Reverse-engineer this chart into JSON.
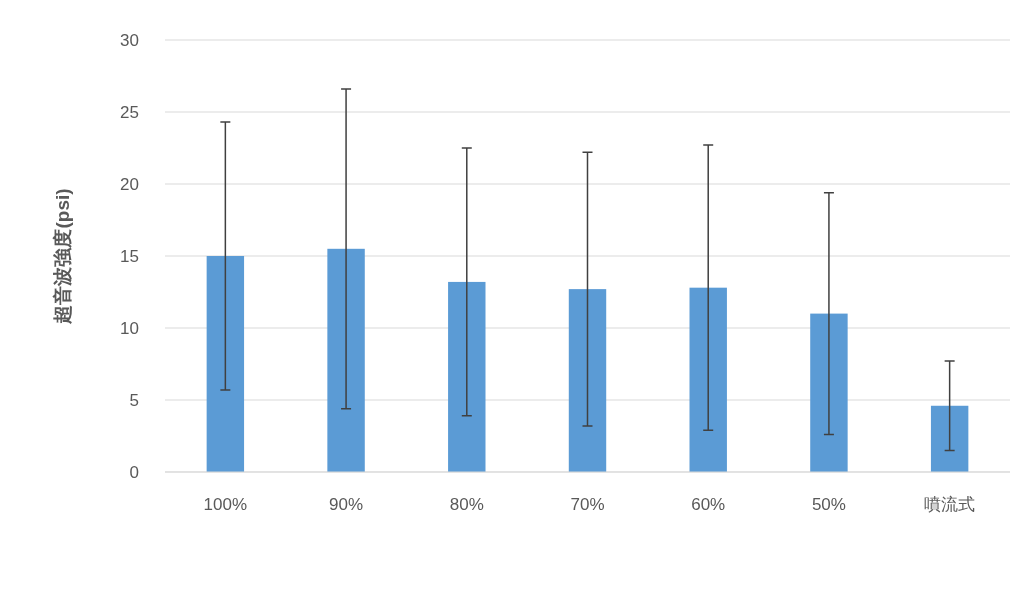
{
  "chart_data": {
    "type": "bar",
    "ylabel": "超音波強度(psi)",
    "categories": [
      "100%",
      "90%",
      "80%",
      "70%",
      "60%",
      "50%",
      "噴流式"
    ],
    "values": [
      15.0,
      15.5,
      13.2,
      12.7,
      12.8,
      11.0,
      4.6
    ],
    "errors": [
      9.3,
      11.1,
      9.3,
      9.5,
      9.9,
      8.4,
      3.1
    ],
    "color": "#5b9bd5",
    "ylim": [
      0,
      30
    ],
    "yticks": [
      0,
      5,
      10,
      15,
      20,
      25,
      30
    ],
    "grid": "y"
  }
}
